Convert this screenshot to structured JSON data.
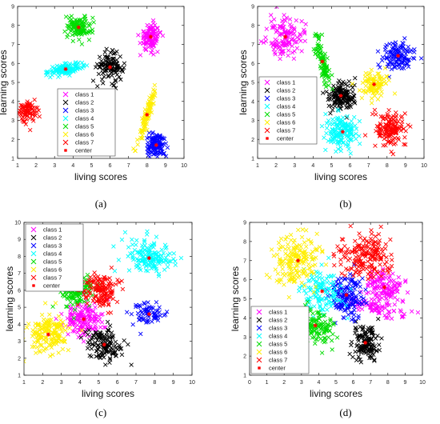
{
  "chart_data": [
    {
      "type": "scatter",
      "panel_label": "(a)",
      "xlabel": "living scores",
      "ylabel": "learning scores",
      "xlim": [
        1,
        10
      ],
      "ylim": [
        1,
        9
      ],
      "xticks": [
        1,
        2,
        3,
        4,
        5,
        6,
        7,
        8,
        9,
        10
      ],
      "yticks": [
        1,
        2,
        3,
        4,
        5,
        6,
        7,
        8,
        9
      ],
      "legend_position": "lower-center",
      "series": [
        {
          "name": "class 1",
          "color": "#ff00ff",
          "marker": "x",
          "clusters": [
            {
              "cx": 8.2,
              "cy": 7.4,
              "sx": 0.28,
              "sy": 0.35,
              "rho": 0,
              "n": 110
            }
          ]
        },
        {
          "name": "class 2",
          "color": "#000000",
          "marker": "x",
          "clusters": [
            {
              "cx": 6.0,
              "cy": 5.8,
              "sx": 0.35,
              "sy": 0.35,
              "rho": 0,
              "n": 120
            }
          ]
        },
        {
          "name": "class 3",
          "color": "#0000ff",
          "marker": "x",
          "clusters": [
            {
              "cx": 8.5,
              "cy": 1.7,
              "sx": 0.28,
              "sy": 0.3,
              "rho": 0,
              "n": 120
            }
          ]
        },
        {
          "name": "class 4",
          "color": "#00ffff",
          "marker": "x",
          "clusters": [
            {
              "cx": 3.6,
              "cy": 5.7,
              "sx": 0.45,
              "sy": 0.15,
              "rho": 0.4,
              "n": 120
            }
          ]
        },
        {
          "name": "class 5",
          "color": "#00dd00",
          "marker": "x",
          "clusters": [
            {
              "cx": 4.3,
              "cy": 7.9,
              "sx": 0.35,
              "sy": 0.3,
              "rho": 0,
              "n": 120
            }
          ]
        },
        {
          "name": "class 6",
          "color": "#ffee00",
          "marker": "x",
          "clusters": [
            {
              "cx": 8.0,
              "cy": 3.3,
              "sx": 0.25,
              "sy": 0.75,
              "rho": 0.93,
              "n": 100
            }
          ]
        },
        {
          "name": "class 7",
          "color": "#ff0000",
          "marker": "x",
          "clusters": [
            {
              "cx": 1.6,
              "cy": 3.5,
              "sx": 0.3,
              "sy": 0.3,
              "rho": 0,
              "n": 80
            }
          ]
        },
        {
          "name": "center",
          "color": "#ff0000",
          "marker": "*",
          "points": [
            [
              8.2,
              7.4
            ],
            [
              6.0,
              5.8
            ],
            [
              8.5,
              1.7
            ],
            [
              3.6,
              5.7
            ],
            [
              4.3,
              7.9
            ],
            [
              8.0,
              3.3
            ],
            [
              1.6,
              3.5
            ]
          ]
        }
      ]
    },
    {
      "type": "scatter",
      "panel_label": "(b)",
      "xlabel": "living scores",
      "ylabel": "learning scores",
      "xlim": [
        1,
        10
      ],
      "ylim": [
        1,
        9
      ],
      "xticks": [
        1,
        2,
        3,
        4,
        5,
        6,
        7,
        8,
        9,
        10
      ],
      "yticks": [
        1,
        2,
        3,
        4,
        5,
        6,
        7,
        8,
        9
      ],
      "legend_position": "center-left",
      "series": [
        {
          "name": "class 1",
          "color": "#ff00ff",
          "marker": "x",
          "clusters": [
            {
              "cx": 2.5,
              "cy": 7.4,
              "sx": 0.45,
              "sy": 0.5,
              "rho": 0,
              "n": 130
            }
          ]
        },
        {
          "name": "class 2",
          "color": "#000000",
          "marker": "x",
          "clusters": [
            {
              "cx": 5.5,
              "cy": 4.3,
              "sx": 0.38,
              "sy": 0.38,
              "rho": 0,
              "n": 150
            }
          ]
        },
        {
          "name": "class 3",
          "color": "#0000ff",
          "marker": "x",
          "clusters": [
            {
              "cx": 8.6,
              "cy": 6.4,
              "sx": 0.4,
              "sy": 0.4,
              "rho": 0,
              "n": 120
            }
          ]
        },
        {
          "name": "class 4",
          "color": "#00ffff",
          "marker": "x",
          "clusters": [
            {
              "cx": 5.6,
              "cy": 2.4,
              "sx": 0.45,
              "sy": 0.45,
              "rho": 0,
              "n": 150
            }
          ]
        },
        {
          "name": "class 5",
          "color": "#00dd00",
          "marker": "x",
          "clusters": [
            {
              "cx": 4.5,
              "cy": 6.1,
              "sx": 0.2,
              "sy": 0.7,
              "rho": -0.8,
              "n": 90
            }
          ]
        },
        {
          "name": "class 6",
          "color": "#ffee00",
          "marker": "x",
          "clusters": [
            {
              "cx": 7.3,
              "cy": 4.9,
              "sx": 0.35,
              "sy": 0.35,
              "rho": 0,
              "n": 100
            }
          ]
        },
        {
          "name": "class 7",
          "color": "#ff0000",
          "marker": "x",
          "clusters": [
            {
              "cx": 8.2,
              "cy": 2.5,
              "sx": 0.4,
              "sy": 0.45,
              "rho": 0,
              "n": 140
            }
          ]
        },
        {
          "name": "center",
          "color": "#ff0000",
          "marker": "*",
          "points": [
            [
              2.5,
              7.4
            ],
            [
              5.5,
              4.3
            ],
            [
              8.6,
              6.4
            ],
            [
              5.6,
              2.4
            ],
            [
              4.5,
              6.1
            ],
            [
              7.3,
              4.9
            ],
            [
              8.2,
              2.5
            ]
          ]
        }
      ]
    },
    {
      "type": "scatter",
      "panel_label": "(c)",
      "xlabel": "living scores",
      "ylabel": "learning scores",
      "xlim": [
        1,
        10
      ],
      "ylim": [
        1,
        10
      ],
      "xticks": [
        1,
        2,
        3,
        4,
        5,
        6,
        7,
        8,
        9,
        10
      ],
      "yticks": [
        1,
        2,
        3,
        4,
        5,
        6,
        7,
        8,
        9,
        10
      ],
      "legend_position": "top-left",
      "series": [
        {
          "name": "class 1",
          "color": "#ff00ff",
          "marker": "x",
          "clusters": [
            {
              "cx": 4.2,
              "cy": 4.3,
              "sx": 0.55,
              "sy": 0.5,
              "rho": 0,
              "n": 150
            }
          ]
        },
        {
          "name": "class 2",
          "color": "#000000",
          "marker": "x",
          "clusters": [
            {
              "cx": 5.3,
              "cy": 2.8,
              "sx": 0.45,
              "sy": 0.5,
              "rho": 0,
              "n": 130
            }
          ]
        },
        {
          "name": "class 3",
          "color": "#0000ff",
          "marker": "x",
          "clusters": [
            {
              "cx": 7.7,
              "cy": 4.6,
              "sx": 0.45,
              "sy": 0.4,
              "rho": 0,
              "n": 70
            }
          ]
        },
        {
          "name": "class 4",
          "color": "#00ffff",
          "marker": "x",
          "clusters": [
            {
              "cx": 7.7,
              "cy": 7.9,
              "sx": 0.65,
              "sy": 0.5,
              "rho": -0.2,
              "n": 160
            }
          ]
        },
        {
          "name": "class 5",
          "color": "#00dd00",
          "marker": "x",
          "clusters": [
            {
              "cx": 3.9,
              "cy": 6.0,
              "sx": 0.4,
              "sy": 0.5,
              "rho": 0,
              "n": 130
            }
          ]
        },
        {
          "name": "class 6",
          "color": "#ffee00",
          "marker": "x",
          "clusters": [
            {
              "cx": 2.3,
              "cy": 3.4,
              "sx": 0.6,
              "sy": 0.55,
              "rho": 0,
              "n": 170
            }
          ]
        },
        {
          "name": "class 7",
          "color": "#ff0000",
          "marker": "x",
          "clusters": [
            {
              "cx": 5.1,
              "cy": 6.0,
              "sx": 0.45,
              "sy": 0.55,
              "rho": 0,
              "n": 140
            }
          ]
        },
        {
          "name": "center",
          "color": "#ff0000",
          "marker": "*",
          "points": [
            [
              4.2,
              4.3
            ],
            [
              5.3,
              2.8
            ],
            [
              7.7,
              4.6
            ],
            [
              7.7,
              7.9
            ],
            [
              3.9,
              6.0
            ],
            [
              2.3,
              3.4
            ],
            [
              5.1,
              6.0
            ]
          ]
        }
      ]
    },
    {
      "type": "scatter",
      "panel_label": "(d)",
      "xlabel": "living scores",
      "ylabel": "learning scores",
      "xlim": [
        0,
        10
      ],
      "ylim": [
        1,
        9
      ],
      "xticks": [
        0,
        1,
        2,
        3,
        4,
        5,
        6,
        7,
        8,
        9,
        10
      ],
      "yticks": [
        1,
        2,
        3,
        4,
        5,
        6,
        7,
        8,
        9
      ],
      "legend_position": "lower-left",
      "series": [
        {
          "name": "class 1",
          "color": "#ff00ff",
          "marker": "x",
          "clusters": [
            {
              "cx": 7.8,
              "cy": 5.6,
              "sx": 0.5,
              "sy": 0.5,
              "rho": 0,
              "n": 130
            },
            {
              "cx": 7.4,
              "cy": 4.5,
              "sx": 0.8,
              "sy": 0.3,
              "rho": -0.7,
              "n": 70
            }
          ]
        },
        {
          "name": "class 2",
          "color": "#000000",
          "marker": "x",
          "clusters": [
            {
              "cx": 6.7,
              "cy": 2.7,
              "sx": 0.35,
              "sy": 0.45,
              "rho": 0,
              "n": 130
            }
          ]
        },
        {
          "name": "class 3",
          "color": "#0000ff",
          "marker": "x",
          "clusters": [
            {
              "cx": 5.6,
              "cy": 5.2,
              "sx": 0.5,
              "sy": 0.55,
              "rho": 0,
              "n": 150
            }
          ]
        },
        {
          "name": "class 4",
          "color": "#00ffff",
          "marker": "x",
          "clusters": [
            {
              "cx": 4.2,
              "cy": 5.4,
              "sx": 0.6,
              "sy": 0.6,
              "rho": 0,
              "n": 120
            }
          ]
        },
        {
          "name": "class 5",
          "color": "#00dd00",
          "marker": "x",
          "clusters": [
            {
              "cx": 3.8,
              "cy": 3.6,
              "sx": 0.55,
              "sy": 0.5,
              "rho": 0,
              "n": 120
            }
          ]
        },
        {
          "name": "class 6",
          "color": "#ffee00",
          "marker": "x",
          "clusters": [
            {
              "cx": 2.8,
              "cy": 7.0,
              "sx": 0.7,
              "sy": 0.7,
              "rho": 0,
              "n": 180
            }
          ]
        },
        {
          "name": "class 7",
          "color": "#ff0000",
          "marker": "x",
          "clusters": [
            {
              "cx": 6.7,
              "cy": 7.3,
              "sx": 0.7,
              "sy": 0.6,
              "rho": 0,
              "n": 180
            }
          ]
        },
        {
          "name": "center",
          "color": "#ff0000",
          "marker": "*",
          "points": [
            [
              7.8,
              5.6
            ],
            [
              6.7,
              2.7
            ],
            [
              5.6,
              5.2
            ],
            [
              4.2,
              5.4
            ],
            [
              3.8,
              3.6
            ],
            [
              2.8,
              7.0
            ],
            [
              6.7,
              7.3
            ]
          ]
        }
      ]
    }
  ]
}
